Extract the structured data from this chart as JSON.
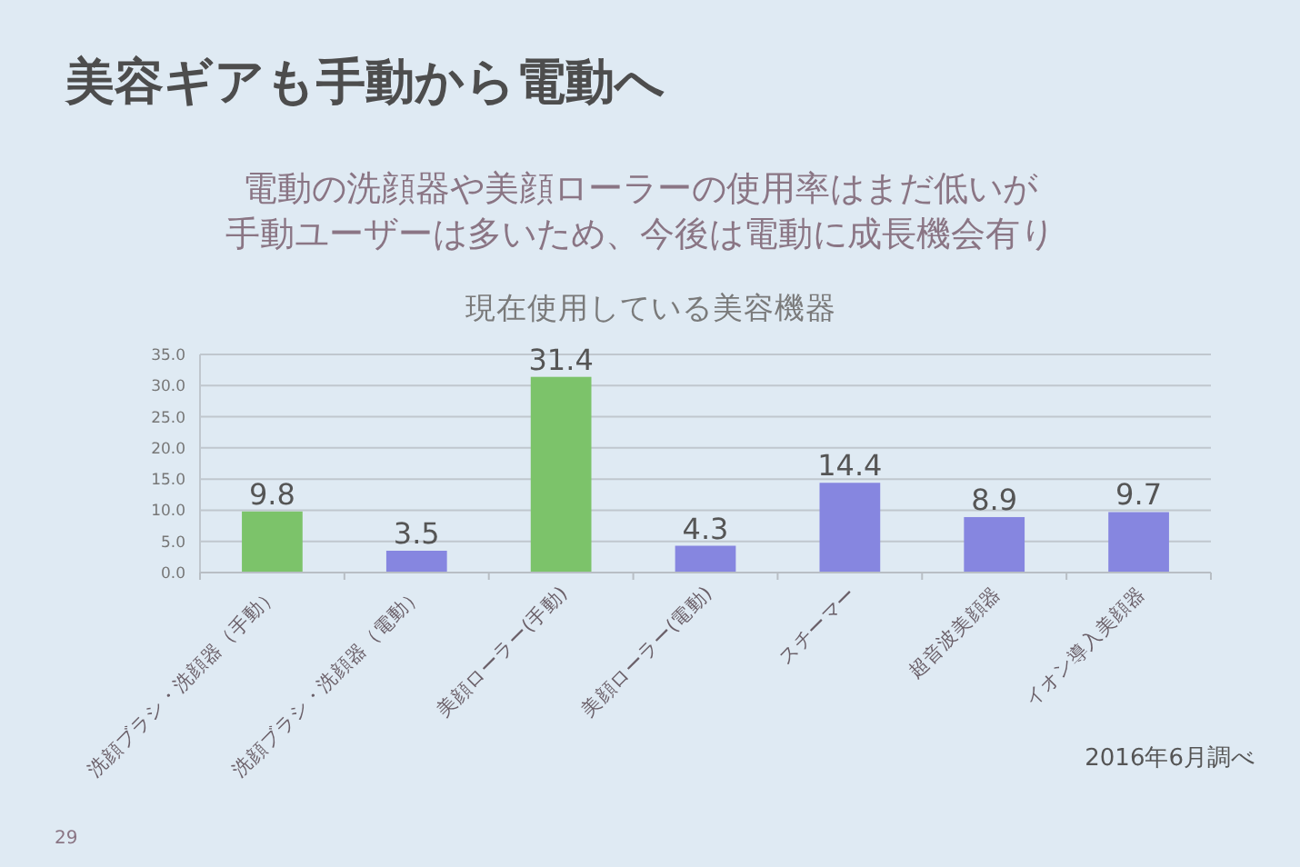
{
  "chart_data": {
    "type": "bar",
    "title": "美容ギアも手動から電動へ",
    "subtitle": "電動の洗顔器や美顔ローラーの使用率はまだ低いが手動ユーザーは多いため、今後は電動に成長機会有り",
    "annotations": [
      "現在使用している美容機器",
      "2016年6月調べ",
      "29"
    ],
    "categories": [
      "洗顔ブラシ・洗顔器（手動）",
      "洗顔ブラシ・洗顔器（電動）",
      "美顔ローラー(手動)",
      "美顔ローラー(電動)",
      "スチーマー",
      "超音波美顔器",
      "イオン導入美顔器"
    ],
    "values": [
      9.8,
      3.5,
      31.4,
      4.3,
      14.4,
      8.9,
      9.7
    ],
    "colors": [
      "#7cc36a",
      "#8686e0",
      "#7cc36a",
      "#8686e0",
      "#8686e0",
      "#8686e0",
      "#8686e0"
    ],
    "ylim": [
      0,
      35
    ],
    "yticks": [
      {
        "value": 0,
        "label": "0.0"
      },
      {
        "value": 5,
        "label": "5.0"
      },
      {
        "value": 10,
        "label": "10.0"
      },
      {
        "value": 15,
        "label": "15.0"
      },
      {
        "value": 20,
        "label": "20.0"
      },
      {
        "value": 25,
        "label": "25.0"
      },
      {
        "value": 30,
        "label": "30.0"
      },
      {
        "value": 35,
        "label": "35.0"
      }
    ],
    "grid": "y",
    "data_labels": true
  }
}
